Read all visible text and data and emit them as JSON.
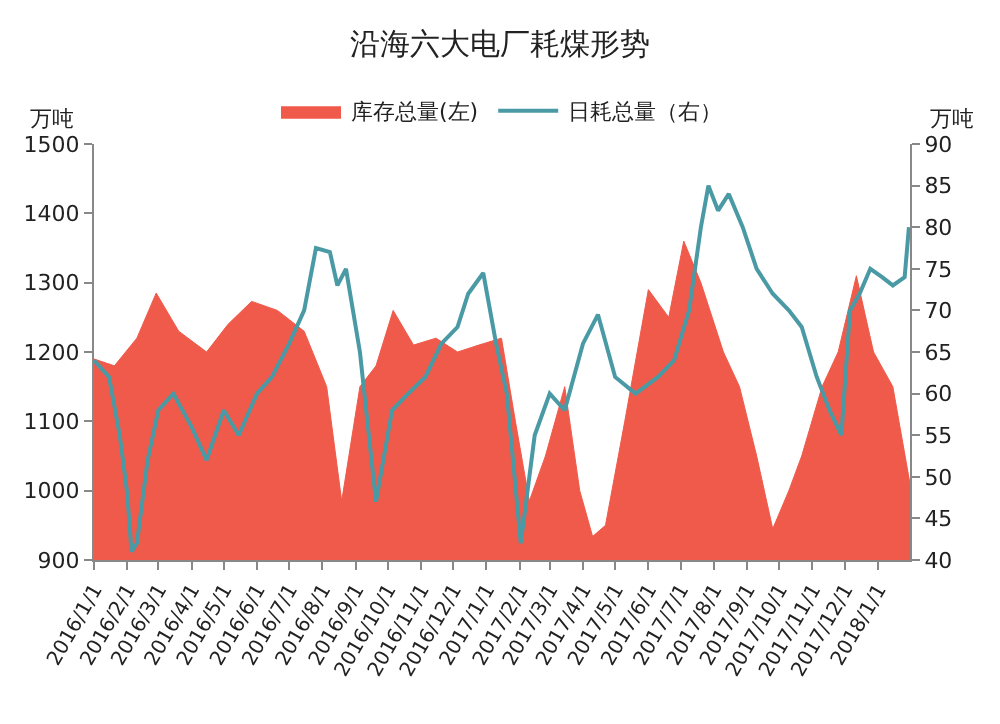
{
  "chart_data": {
    "type": "line",
    "title": "沿海六大电厂耗煤形势",
    "ylabel": "万吨",
    "y2label": "万吨",
    "xlim": [
      "2016-01-01",
      "2018-01-31"
    ],
    "xticks": [
      {
        "value": "2016-01-01",
        "label": "2016/1/1"
      },
      {
        "value": "2016-02-01",
        "label": "2016/2/1"
      },
      {
        "value": "2016-03-01",
        "label": "2016/3/1"
      },
      {
        "value": "2016-04-01",
        "label": "2016/4/1"
      },
      {
        "value": "2016-05-01",
        "label": "2016/5/1"
      },
      {
        "value": "2016-06-01",
        "label": "2016/6/1"
      },
      {
        "value": "2016-07-01",
        "label": "2016/7/1"
      },
      {
        "value": "2016-08-01",
        "label": "2016/8/1"
      },
      {
        "value": "2016-09-01",
        "label": "2016/9/1"
      },
      {
        "value": "2016-10-01",
        "label": "2016/10/1"
      },
      {
        "value": "2016-11-01",
        "label": "2016/11/1"
      },
      {
        "value": "2016-12-01",
        "label": "2016/12/1"
      },
      {
        "value": "2017-01-01",
        "label": "2017/1/1"
      },
      {
        "value": "2017-02-01",
        "label": "2017/2/1"
      },
      {
        "value": "2017-03-01",
        "label": "2017/3/1"
      },
      {
        "value": "2017-04-01",
        "label": "2017/4/1"
      },
      {
        "value": "2017-05-01",
        "label": "2017/5/1"
      },
      {
        "value": "2017-06-01",
        "label": "2017/6/1"
      },
      {
        "value": "2017-07-01",
        "label": "2017/7/1"
      },
      {
        "value": "2017-08-01",
        "label": "2017/8/1"
      },
      {
        "value": "2017-09-01",
        "label": "2017/9/1"
      },
      {
        "value": "2017-10-01",
        "label": "2017/10/1"
      },
      {
        "value": "2017-11-01",
        "label": "2017/11/1"
      },
      {
        "value": "2017-12-01",
        "label": "2017/12/1"
      },
      {
        "value": "2018-01-01",
        "label": "2018/1/1"
      }
    ],
    "ylim": [
      900,
      1500
    ],
    "yticks": [
      900,
      1000,
      1100,
      1200,
      1300,
      1400,
      1500
    ],
    "y2lim": [
      40,
      90
    ],
    "y2ticks": [
      40,
      45,
      50,
      55,
      60,
      65,
      70,
      75,
      80,
      85,
      90
    ],
    "legend": "top",
    "marker": "none",
    "series": [
      {
        "name": "库存总量(左)",
        "type": "area",
        "color": "#f05a4a",
        "x": [
          "2016-01-01",
          "2016-01-20",
          "2016-02-10",
          "2016-02-28",
          "2016-03-20",
          "2016-04-15",
          "2016-05-05",
          "2016-05-27",
          "2016-06-20",
          "2016-07-15",
          "2016-08-05",
          "2016-08-19",
          "2016-09-05",
          "2016-09-20",
          "2016-10-06",
          "2016-10-25",
          "2016-11-15",
          "2016-12-05",
          "2016-12-25",
          "2017-01-15",
          "2017-01-28",
          "2017-02-10",
          "2017-02-25",
          "2017-03-15",
          "2017-03-29",
          "2017-04-10",
          "2017-04-22",
          "2017-05-10",
          "2017-06-01",
          "2017-06-20",
          "2017-07-04",
          "2017-07-20",
          "2017-08-10",
          "2017-08-25",
          "2017-09-10",
          "2017-09-25",
          "2017-10-10",
          "2017-10-22",
          "2017-11-10",
          "2017-11-25",
          "2017-12-12",
          "2017-12-28",
          "2018-01-15",
          "2018-01-31"
        ],
        "values": [
          1190,
          1180,
          1220,
          1285,
          1230,
          1200,
          1240,
          1273,
          1260,
          1230,
          1150,
          985,
          1150,
          1180,
          1260,
          1210,
          1220,
          1200,
          1210,
          1220,
          1100,
          985,
          1050,
          1150,
          1000,
          934,
          950,
          1100,
          1290,
          1250,
          1360,
          1300,
          1200,
          1150,
          1050,
          945,
          1000,
          1050,
          1150,
          1200,
          1310,
          1200,
          1150,
          1010
        ]
      },
      {
        "name": "日耗总量（右）",
        "axis": "y2",
        "color": "#4a9aa5",
        "x": [
          "2016-01-01",
          "2016-01-15",
          "2016-01-25",
          "2016-02-01",
          "2016-02-05",
          "2016-02-10",
          "2016-02-20",
          "2016-03-01",
          "2016-03-15",
          "2016-04-01",
          "2016-04-15",
          "2016-05-01",
          "2016-05-15",
          "2016-06-01",
          "2016-06-15",
          "2016-07-01",
          "2016-07-15",
          "2016-07-26",
          "2016-08-08",
          "2016-08-15",
          "2016-08-23",
          "2016-09-05",
          "2016-09-20",
          "2016-10-05",
          "2016-10-20",
          "2016-11-05",
          "2016-11-20",
          "2016-12-05",
          "2016-12-15",
          "2016-12-29",
          "2017-01-10",
          "2017-01-20",
          "2017-02-02",
          "2017-02-15",
          "2017-03-01",
          "2017-03-15",
          "2017-04-01",
          "2017-04-15",
          "2017-05-01",
          "2017-05-20",
          "2017-06-10",
          "2017-06-25",
          "2017-07-09",
          "2017-07-20",
          "2017-07-27",
          "2017-08-05",
          "2017-08-15",
          "2017-08-28",
          "2017-09-10",
          "2017-09-25",
          "2017-10-10",
          "2017-10-22",
          "2017-11-05",
          "2017-11-17",
          "2017-11-28",
          "2017-12-06",
          "2017-12-15",
          "2017-12-25",
          "2018-01-05",
          "2018-01-15",
          "2018-01-26",
          "2018-01-30"
        ],
        "values": [
          64,
          62,
          55,
          48,
          41,
          42,
          52,
          58,
          60,
          56,
          52,
          58,
          55,
          60,
          62,
          66,
          70,
          77.5,
          77,
          73,
          75,
          65,
          47,
          58,
          60,
          62,
          66,
          68,
          72,
          74.5,
          66,
          60,
          42,
          55,
          60,
          58,
          66,
          69.5,
          62,
          60,
          62,
          64,
          70,
          80,
          85,
          82,
          84,
          80,
          75,
          72,
          70,
          68,
          62,
          58,
          55,
          70,
          72,
          75,
          74,
          73,
          74,
          80
        ]
      }
    ]
  }
}
